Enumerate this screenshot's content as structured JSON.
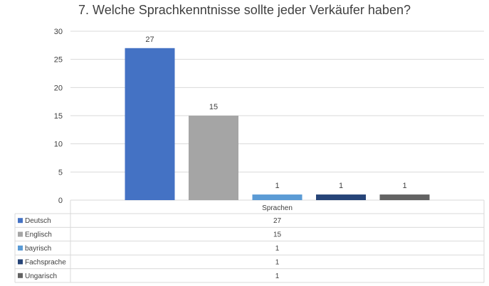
{
  "chart_data": {
    "type": "bar",
    "title": "7. Welche Sprachkenntnisse sollte jeder Verkäufer haben?",
    "xlabel": "Sprachen",
    "ylabel": "",
    "ylim": [
      0,
      30
    ],
    "yticks": [
      0,
      5,
      10,
      15,
      20,
      25,
      30
    ],
    "grid": true,
    "legend": "data-table",
    "series": [
      {
        "name": "Deutsch",
        "values": [
          27
        ],
        "color": "#4472C4"
      },
      {
        "name": "Englisch",
        "values": [
          15
        ],
        "color": "#A5A5A5"
      },
      {
        "name": "bayrisch",
        "values": [
          1
        ],
        "color": "#5B9BD5"
      },
      {
        "name": "Fachsprache",
        "values": [
          1
        ],
        "color": "#264478"
      },
      {
        "name": "Ungarisch",
        "values": [
          1
        ],
        "color": "#636363"
      }
    ],
    "categories": [
      "Sprachen"
    ],
    "data_labels": [
      "27",
      "15",
      "1",
      "1",
      "1"
    ],
    "table_rows": [
      {
        "name": "Deutsch",
        "value": "27"
      },
      {
        "name": "Englisch",
        "value": "15"
      },
      {
        "name": "bayrisch",
        "value": "1"
      },
      {
        "name": "Fachsprache",
        "value": "1"
      },
      {
        "name": "Ungarisch",
        "value": "1"
      }
    ]
  }
}
